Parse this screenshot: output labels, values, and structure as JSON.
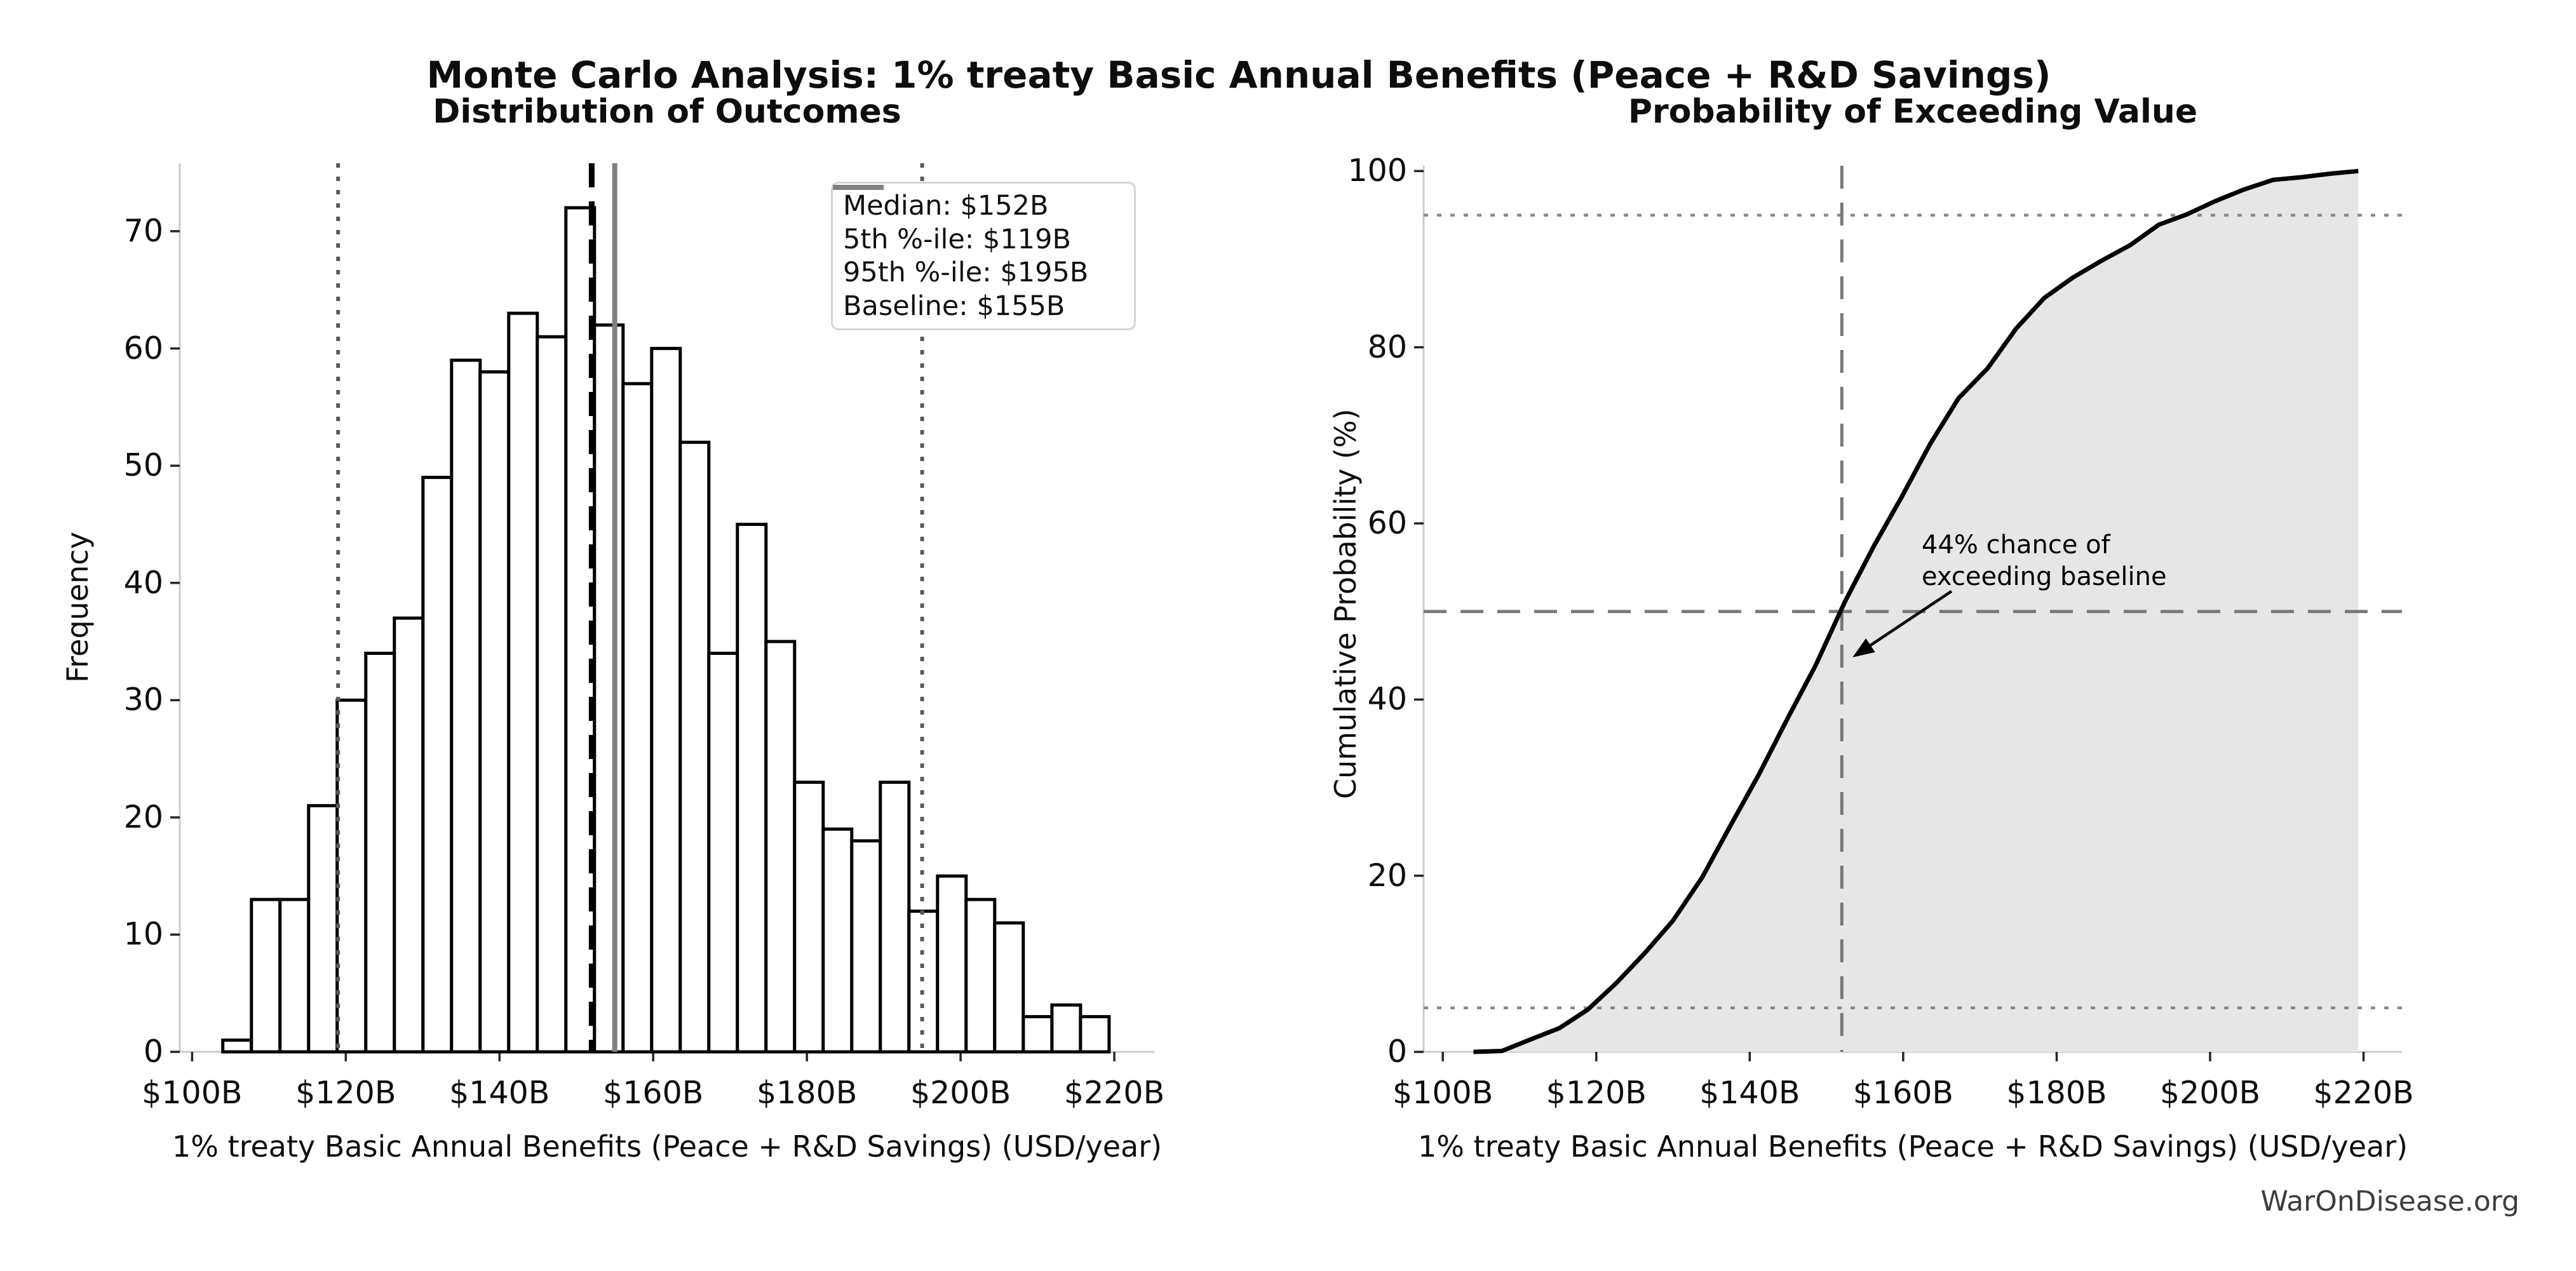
{
  "suptitle": "Monte Carlo Analysis: 1% treaty Basic Annual Benefits (Peace + R&D Savings)",
  "watermark": "WarOnDisease.org",
  "chart_data": [
    {
      "type": "bar",
      "subtype": "histogram",
      "title": "Distribution of Outcomes",
      "xlabel": "1% treaty Basic Annual Benefits (Peace + R&D Savings) (USD/year)",
      "ylabel": "Frequency",
      "bin_start": 104.0,
      "bin_width": 3.72,
      "counts": [
        1,
        13,
        13,
        21,
        30,
        34,
        37,
        49,
        59,
        58,
        63,
        61,
        72,
        62,
        57,
        60,
        52,
        34,
        45,
        35,
        23,
        19,
        18,
        23,
        12,
        15,
        13,
        11,
        3,
        4,
        3
      ],
      "total_samples": 1000,
      "xlim": [
        98.4,
        225.2
      ],
      "ylim": [
        0,
        75.8
      ],
      "x_tick_values": [
        100,
        120,
        140,
        160,
        180,
        200,
        220
      ],
      "x_tick_labels": [
        "$100B",
        "$120B",
        "$140B",
        "$160B",
        "$180B",
        "$200B",
        "$220B"
      ],
      "y_tick_values": [
        0,
        10,
        20,
        30,
        40,
        50,
        60,
        70
      ],
      "y_tick_labels": [
        "0",
        "10",
        "20",
        "30",
        "40",
        "50",
        "60",
        "70"
      ],
      "bar_fill": "#ffffff",
      "bar_edge": "#000000",
      "ref_lines": [
        {
          "name": "median-line",
          "value": 152,
          "style": "dashed-black",
          "label": "Median: $152B"
        },
        {
          "name": "percentile-5-line",
          "value": 119,
          "style": "dotted-darkgray",
          "label": "5th %-ile: $119B"
        },
        {
          "name": "percentile-95-line",
          "value": 195,
          "style": "dotted-darkgray",
          "label": "95th %-ile: $195B"
        },
        {
          "name": "baseline-line",
          "value": 155,
          "style": "solid-gray",
          "label": "Baseline: $155B"
        }
      ],
      "legend_position": "upper right",
      "grid": false
    },
    {
      "type": "line",
      "subtype": "cdf",
      "title": "Probability of Exceeding Value",
      "xlabel": "1% treaty Basic Annual Benefits (Peace + R&D Savings) (USD/year)",
      "ylabel": "Cumulative Probability (%)",
      "x": [
        104.0,
        107.7,
        111.4,
        115.2,
        118.9,
        122.6,
        126.3,
        130.0,
        133.8,
        137.5,
        141.2,
        144.9,
        148.6,
        152.4,
        156.1,
        159.8,
        163.5,
        167.2,
        171.0,
        174.7,
        178.4,
        182.1,
        185.8,
        189.6,
        193.3,
        197.0,
        200.7,
        204.4,
        208.2,
        211.9,
        215.6,
        219.3
      ],
      "y": [
        0,
        0.1,
        1.4,
        2.7,
        4.8,
        7.8,
        11.2,
        14.9,
        19.8,
        25.7,
        31.5,
        37.8,
        43.9,
        51.1,
        57.3,
        63.0,
        69.0,
        74.2,
        77.6,
        82.1,
        85.6,
        87.9,
        89.8,
        91.6,
        93.9,
        95.1,
        96.6,
        97.9,
        99.0,
        99.3,
        99.7,
        100
      ],
      "xlim": [
        97.5,
        225.0
      ],
      "ylim": [
        0,
        100.6
      ],
      "x_tick_values": [
        100,
        120,
        140,
        160,
        180,
        200,
        220
      ],
      "x_tick_labels": [
        "$100B",
        "$120B",
        "$140B",
        "$160B",
        "$180B",
        "$200B",
        "$220B"
      ],
      "y_tick_values": [
        0,
        20,
        40,
        60,
        80,
        100
      ],
      "y_tick_labels": [
        "0",
        "20",
        "40",
        "60",
        "80",
        "100"
      ],
      "line_color": "#000000",
      "fill": true,
      "fill_color": "#e6e6e6",
      "h_lines": [
        {
          "name": "h-line-5pct",
          "value": 5,
          "style": "dotted-gray"
        },
        {
          "name": "h-line-50pct",
          "value": 50,
          "style": "dashed-gray"
        },
        {
          "name": "h-line-95pct",
          "value": 95,
          "style": "dotted-gray"
        }
      ],
      "v_lines": [
        {
          "name": "v-line-median",
          "value": 152,
          "style": "dashed-gray"
        }
      ],
      "annotation": {
        "lines": [
          "44% chance of",
          "exceeding baseline"
        ],
        "text_x": 162.4,
        "text_y_pct": 59.3,
        "arrow_start": {
          "x": 166.3,
          "y": 52.3
        },
        "arrow_tip": {
          "x": 153.4,
          "y": 44.8
        }
      },
      "grid": false
    }
  ]
}
